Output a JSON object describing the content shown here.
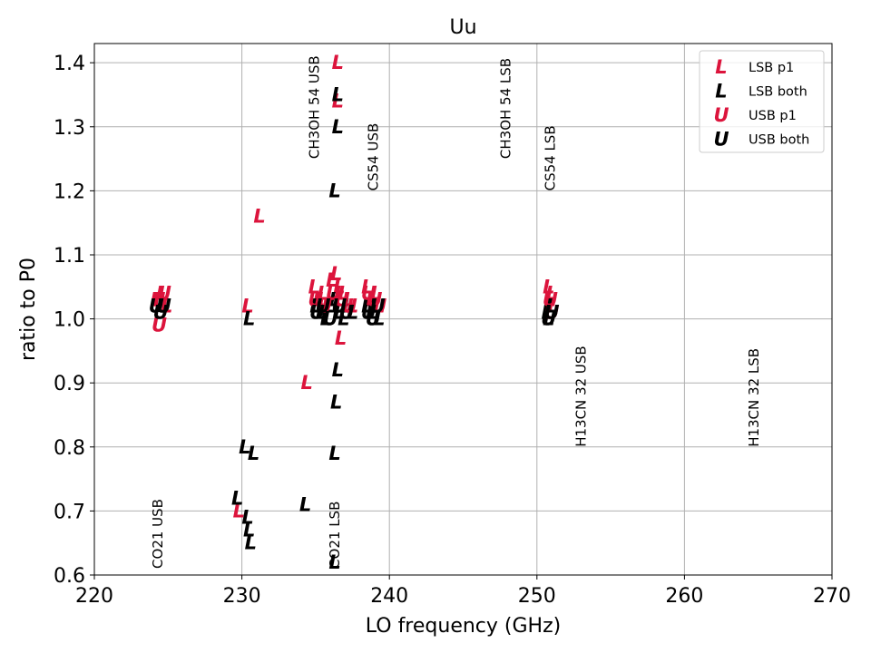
{
  "chart_data": {
    "type": "scatter",
    "title": "Uu",
    "xlabel": "LO frequency (GHz)",
    "ylabel": "ratio to P0",
    "xlim": [
      220,
      270
    ],
    "ylim": [
      0.6,
      1.43
    ],
    "xticks": [
      220,
      230,
      240,
      250,
      260,
      270
    ],
    "xtick_labels": [
      "220",
      "230",
      "240",
      "250",
      "260",
      "270"
    ],
    "yticks": [
      0.6,
      0.7,
      0.8,
      0.9,
      1.0,
      1.1,
      1.2,
      1.3,
      1.4
    ],
    "ytick_labels": [
      "0.6",
      "0.7",
      "0.8",
      "0.9",
      "1.0",
      "1.1",
      "1.2",
      "1.3",
      "1.4"
    ],
    "grid": true,
    "legend_position": "top-right",
    "series": [
      {
        "name": "LSB p1",
        "marker": "L",
        "color": "#dc143c",
        "points": [
          [
            224.4,
            1.03
          ],
          [
            224.7,
            1.04
          ],
          [
            224.9,
            1.02
          ],
          [
            230.4,
            1.02
          ],
          [
            229.8,
            0.7
          ],
          [
            231.2,
            1.16
          ],
          [
            234.4,
            0.9
          ],
          [
            234.9,
            1.05
          ],
          [
            235.2,
            1.03
          ],
          [
            235.5,
            1.04
          ],
          [
            235.8,
            1.02
          ],
          [
            236.1,
            1.06
          ],
          [
            236.4,
            1.07
          ],
          [
            236.6,
            1.05
          ],
          [
            236.9,
            1.04
          ],
          [
            237.2,
            1.03
          ],
          [
            237.5,
            1.02
          ],
          [
            236.5,
            1.4
          ],
          [
            236.5,
            1.34
          ],
          [
            236.7,
            0.97
          ],
          [
            238.5,
            1.05
          ],
          [
            238.8,
            1.03
          ],
          [
            239.1,
            1.04
          ],
          [
            239.3,
            1.02
          ],
          [
            250.8,
            1.05
          ],
          [
            250.9,
            1.03
          ],
          [
            251.0,
            1.04
          ],
          [
            251.1,
            1.02
          ]
        ]
      },
      {
        "name": "LSB both",
        "marker": "L",
        "color": "#000000",
        "points": [
          [
            230.5,
            1.0
          ],
          [
            230.2,
            0.8
          ],
          [
            230.8,
            0.79
          ],
          [
            229.7,
            0.72
          ],
          [
            230.4,
            0.69
          ],
          [
            230.5,
            0.67
          ],
          [
            230.6,
            0.65
          ],
          [
            234.3,
            0.71
          ],
          [
            235.0,
            1.02
          ],
          [
            235.4,
            1.01
          ],
          [
            235.7,
            1.0
          ],
          [
            236.0,
            1.02
          ],
          [
            236.3,
            1.03
          ],
          [
            236.6,
            1.01
          ],
          [
            236.9,
            1.0
          ],
          [
            237.2,
            1.02
          ],
          [
            237.5,
            1.01
          ],
          [
            236.5,
            1.35
          ],
          [
            236.5,
            1.3
          ],
          [
            236.3,
            1.2
          ],
          [
            236.5,
            0.92
          ],
          [
            236.4,
            0.87
          ],
          [
            236.3,
            0.79
          ],
          [
            236.3,
            0.62
          ],
          [
            238.5,
            1.02
          ],
          [
            238.8,
            1.01
          ],
          [
            239.0,
            1.02
          ],
          [
            239.3,
            1.0
          ],
          [
            250.7,
            1.01
          ],
          [
            250.8,
            1.0
          ],
          [
            251.0,
            1.02
          ]
        ]
      },
      {
        "name": "USB p1",
        "marker": "U",
        "color": "#dc143c",
        "points": [
          [
            224.3,
            1.03
          ],
          [
            224.7,
            1.04
          ],
          [
            224.4,
            0.99
          ],
          [
            235.0,
            1.03
          ],
          [
            235.6,
            1.02
          ],
          [
            236.2,
            1.04
          ],
          [
            236.8,
            1.03
          ],
          [
            237.3,
            1.02
          ],
          [
            238.6,
            1.04
          ],
          [
            239.0,
            1.03
          ],
          [
            239.3,
            1.02
          ],
          [
            250.9,
            1.03
          ],
          [
            251.0,
            1.01
          ]
        ]
      },
      {
        "name": "USB both",
        "marker": "U",
        "color": "#000000",
        "points": [
          [
            224.2,
            1.02
          ],
          [
            224.5,
            1.01
          ],
          [
            224.7,
            1.02
          ],
          [
            235.1,
            1.01
          ],
          [
            235.5,
            1.02
          ],
          [
            236.0,
            1.0
          ],
          [
            236.6,
            1.02
          ],
          [
            237.1,
            1.01
          ],
          [
            238.6,
            1.01
          ],
          [
            238.9,
            1.0
          ],
          [
            239.2,
            1.02
          ],
          [
            250.8,
            1.0
          ],
          [
            251.0,
            1.01
          ]
        ]
      }
    ],
    "annotations": [
      {
        "text": "CO21 USB",
        "x": 224.3,
        "y": 0.61
      },
      {
        "text": "CO21 LSB",
        "x": 236.3,
        "y": 0.61
      },
      {
        "text": "CH3OH 54 USB",
        "x": 234.9,
        "y": 1.25
      },
      {
        "text": "CS54 USB",
        "x": 238.9,
        "y": 1.2
      },
      {
        "text": "CH3OH 54 LSB",
        "x": 247.9,
        "y": 1.25
      },
      {
        "text": "CS54 LSB",
        "x": 250.9,
        "y": 1.2
      },
      {
        "text": "H13CN 32 USB",
        "x": 253.0,
        "y": 0.8
      },
      {
        "text": "H13CN 32 LSB",
        "x": 264.7,
        "y": 0.8
      }
    ]
  }
}
